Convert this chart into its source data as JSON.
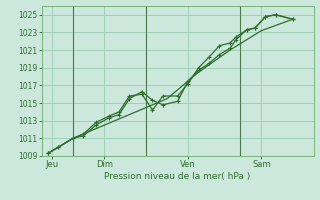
{
  "background_color": "#cce8dc",
  "grid_color": "#99ccb3",
  "line_color": "#2d6e2d",
  "marker_color": "#2d6e2d",
  "title": "Pression niveau de la mer( hPa )",
  "ylim": [
    1009,
    1026
  ],
  "yticks": [
    1009,
    1011,
    1013,
    1015,
    1017,
    1019,
    1021,
    1023,
    1025
  ],
  "day_labels": [
    "Jeu",
    "Dim",
    "Ven",
    "Sam"
  ],
  "day_positions": [
    0.5,
    3.0,
    7.0,
    10.5
  ],
  "vline_positions": [
    1.5,
    5.0,
    9.5
  ],
  "xmin": 0,
  "xmax": 13,
  "line1_x": [
    0.3,
    0.8,
    1.5,
    2.0,
    2.6,
    3.2,
    3.7,
    4.2,
    4.8,
    5.3,
    5.8,
    6.5,
    7.0,
    7.5,
    8.0,
    8.5,
    9.0,
    9.3,
    9.8,
    10.2,
    10.7,
    11.2,
    12.0
  ],
  "line1_y": [
    1009.3,
    1010.0,
    1011.0,
    1011.3,
    1012.5,
    1013.3,
    1013.7,
    1015.5,
    1016.3,
    1015.3,
    1014.8,
    1015.2,
    1017.5,
    1018.7,
    1019.5,
    1020.5,
    1021.2,
    1022.2,
    1023.3,
    1023.5,
    1024.8,
    1025.0,
    1024.5
  ],
  "line2_x": [
    0.3,
    0.8,
    1.5,
    2.0,
    2.6,
    3.2,
    3.7,
    4.2,
    4.8,
    5.3,
    5.8,
    6.5,
    7.0,
    7.5,
    8.0,
    8.5,
    9.0,
    9.3,
    9.8,
    10.2,
    10.7,
    11.2,
    12.0
  ],
  "line2_y": [
    1009.3,
    1010.0,
    1011.0,
    1011.5,
    1012.8,
    1013.5,
    1014.0,
    1015.8,
    1016.0,
    1014.2,
    1015.8,
    1015.8,
    1017.2,
    1019.0,
    1020.2,
    1021.5,
    1021.8,
    1022.5,
    1023.3,
    1023.5,
    1024.8,
    1025.0,
    1024.5
  ],
  "line3_x": [
    0.3,
    1.5,
    3.0,
    4.5,
    6.0,
    7.5,
    9.0,
    10.5,
    12.0
  ],
  "line3_y": [
    1009.3,
    1011.0,
    1012.5,
    1014.0,
    1015.5,
    1018.5,
    1021.0,
    1023.2,
    1024.5
  ]
}
